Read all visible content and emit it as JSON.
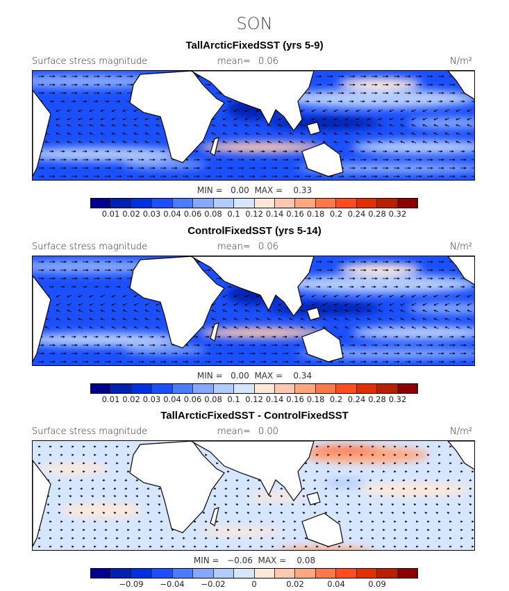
{
  "season": "SON",
  "colors": [
    "#00008c",
    "#0020b0",
    "#0030e0",
    "#1a50ff",
    "#4a7cff",
    "#85a8ff",
    "#b4cbff",
    "#d6e6ff",
    "#ffe8d8",
    "#ffc8b0",
    "#ffa880",
    "#ff7848",
    "#ff4c20",
    "#e03000",
    "#b82000",
    "#8c0000"
  ],
  "panels": [
    {
      "title": "TallArcticFixedSST (yrs 5-9)",
      "label": "Surface stress magnitude",
      "mean_label": "mean=",
      "mean": "0.06",
      "units": "N/m²",
      "min_label": "MIN =",
      "min": "0.00",
      "max_label": "MAX =",
      "max": "0.33",
      "ticks": [
        "0.01",
        "0.02",
        "0.03",
        "0.04",
        "0.06",
        "0.08",
        "0.1",
        "0.12",
        "0.14",
        "0.16",
        "0.18",
        "0.2",
        "0.24",
        "0.28",
        "0.32"
      ],
      "kind": "abs"
    },
    {
      "title": "ControlFixedSST (yrs 5-14)",
      "label": "Surface stress magnitude",
      "mean_label": "mean=",
      "mean": "0.06",
      "units": "N/m²",
      "min_label": "MIN =",
      "min": "0.00",
      "max_label": "MAX =",
      "max": "0.34",
      "ticks": [
        "0.01",
        "0.02",
        "0.03",
        "0.04",
        "0.06",
        "0.08",
        "0.1",
        "0.12",
        "0.14",
        "0.16",
        "0.18",
        "0.2",
        "0.24",
        "0.28",
        "0.32"
      ],
      "kind": "abs"
    },
    {
      "title": "TallArcticFixedSST - ControlFixedSST",
      "label": "Surface stress magnitude",
      "mean_label": "mean=",
      "mean": "0.00",
      "units": "N/m²",
      "min_label": "MIN =",
      "min": "−0.06",
      "max_label": "MAX =",
      "max": "0.08",
      "ticks": [
        "",
        "−0.09",
        "",
        "−0.04",
        "",
        "−0.02",
        "",
        "0",
        "",
        "0.02",
        "",
        "0.04",
        "",
        "0.09",
        ""
      ],
      "kind": "diff"
    }
  ]
}
